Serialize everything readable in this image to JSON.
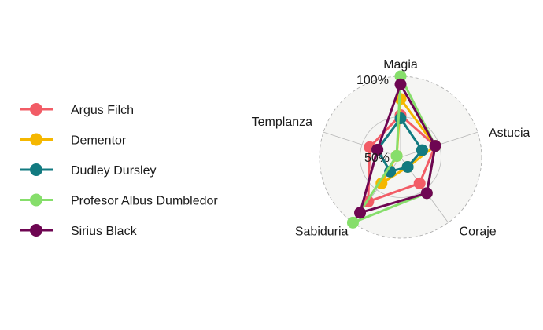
{
  "chart_data": {
    "type": "radar",
    "axes": [
      "Magia",
      "Astucia",
      "Coraje",
      "Sabiduria",
      "Templanza"
    ],
    "grid_labels": [
      "50%",
      "100%"
    ],
    "series": [
      {
        "name": "Argus Filch",
        "color": "#F25C66",
        "values": [
          0.52,
          0.45,
          0.4,
          0.68,
          0.4
        ]
      },
      {
        "name": "Dementor",
        "color": "#F5B700",
        "values": [
          0.72,
          0.45,
          0.15,
          0.4,
          0.05
        ]
      },
      {
        "name": "Dudley Dursley",
        "color": "#127A80",
        "values": [
          0.48,
          0.28,
          0.15,
          0.22,
          0.3
        ]
      },
      {
        "name": "Profesor Albus Dumbledor",
        "color": "#86DE6B",
        "values": [
          1.0,
          0.45,
          0.55,
          1.0,
          0.05
        ]
      },
      {
        "name": "Sirius Black",
        "color": "#6E0652",
        "values": [
          0.9,
          0.45,
          0.55,
          0.85,
          0.3
        ]
      }
    ],
    "legend_position": "left",
    "grid": true
  }
}
